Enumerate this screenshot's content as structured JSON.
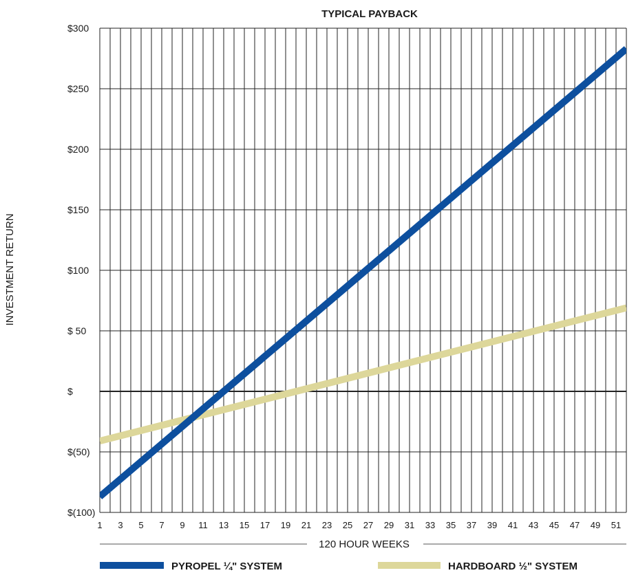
{
  "chart_data": {
    "type": "line",
    "title": "TYPICAL PAYBACK",
    "xlabel": "120 HOUR WEEKS",
    "ylabel": "INVESTMENT RETURN",
    "xlim": [
      1,
      52
    ],
    "ylim": [
      -100,
      300
    ],
    "x_ticks": [
      1,
      3,
      5,
      7,
      9,
      11,
      13,
      15,
      17,
      19,
      21,
      23,
      25,
      27,
      29,
      31,
      33,
      35,
      37,
      39,
      41,
      43,
      45,
      47,
      49,
      51
    ],
    "y_ticks": [
      {
        "value": 300,
        "label": "$300"
      },
      {
        "value": 250,
        "label": "$250"
      },
      {
        "value": 200,
        "label": "$200"
      },
      {
        "value": 150,
        "label": "$150"
      },
      {
        "value": 100,
        "label": "$100"
      },
      {
        "value": 50,
        "label": "$ 50"
      },
      {
        "value": 0,
        "label": "$"
      },
      {
        "value": -50,
        "label": "$(50)"
      },
      {
        "value": -100,
        "label": "$(100)"
      }
    ],
    "grid": true,
    "legend_position": "bottom",
    "series": [
      {
        "name": "PYROPEL ¼\" SYSTEM",
        "color": "#0d4f9e",
        "x": [
          1,
          52
        ],
        "y": [
          -87,
          283
        ]
      },
      {
        "name": "HARDBOARD ½\" SYSTEM",
        "color": "#ddd79a",
        "x": [
          1,
          52
        ],
        "y": [
          -41,
          69
        ]
      }
    ]
  }
}
